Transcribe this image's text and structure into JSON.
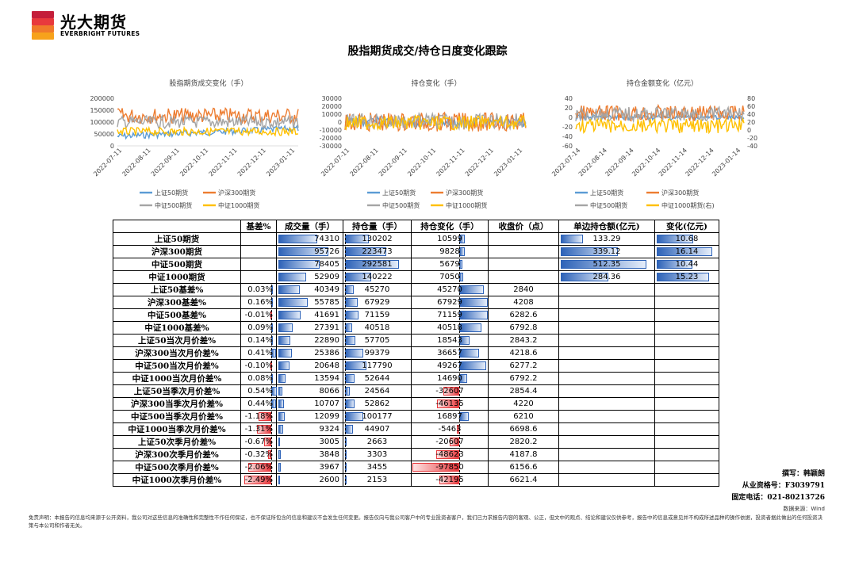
{
  "logo": {
    "cn": "光大期货",
    "en": "EVERBRIGHT FUTURES",
    "colors": [
      "#e8393d",
      "#f07a2a",
      "#f7a21b",
      "#c41e3a"
    ]
  },
  "title": "股指期货成交/持仓日度变化跟踪",
  "charts": [
    {
      "title": "股指期货成交变化（手）",
      "type": "line",
      "yticks": [
        "200000",
        "150000",
        "100000",
        "50000",
        "0"
      ],
      "xticks": [
        "2022-07-11",
        "2022-08-11",
        "2022-09-11",
        "2022-10-11",
        "2022-11-11",
        "2022-12-11",
        "2023-01-11"
      ],
      "legend": [
        "上证50期货",
        "沪深300期货",
        "中证500期货",
        "中证1000期货"
      ]
    },
    {
      "title": "持仓变化（手）",
      "type": "line",
      "yticks": [
        "30000",
        "20000",
        "10000",
        "0",
        "-10000",
        "-20000",
        "-30000"
      ],
      "xticks": [
        "2022-07-11",
        "2022-08-11",
        "2022-09-11",
        "2022-10-11",
        "2022-11-11",
        "2022-12-11",
        "2023-01-11"
      ],
      "legend": [
        "上证50期货",
        "沪深300期货",
        "中证500期货",
        "中证1000期货"
      ]
    },
    {
      "title": "持仓金额变化（亿元）",
      "type": "line",
      "yticks": [
        "40",
        "20",
        "0",
        "-20",
        "-40",
        "-60"
      ],
      "yticks_right": [
        "80",
        "60",
        "40",
        "20",
        "0",
        "-20",
        "-40"
      ],
      "xticks": [
        "2022-07-14",
        "2022-08-14",
        "2022-09-14",
        "2022-10-14",
        "2022-11-14",
        "2022-12-14",
        "2023-01-14"
      ],
      "legend": [
        "上证50期货",
        "沪深300期货",
        "中证500期货",
        "中证1000期货(右)"
      ]
    }
  ],
  "series_colors": [
    "#5b9bd5",
    "#ed7d31",
    "#a5a5a5",
    "#ffc000"
  ],
  "table": {
    "headers": [
      "基差%",
      "成交量（手）",
      "持仓量（手）",
      "持仓变化（手）",
      "收盘价（点）",
      "单边持仓额(亿元)",
      "变化(亿元)"
    ],
    "rows": [
      {
        "label": "上证50期货",
        "basis": "",
        "vol": "74310",
        "oi": "130202",
        "chg": "10599",
        "close": "",
        "amt": "133.29",
        "amtchg": "10.68"
      },
      {
        "label": "沪深300期货",
        "basis": "",
        "vol": "95726",
        "oi": "223473",
        "chg": "9828",
        "close": "",
        "amt": "339.12",
        "amtchg": "16.14"
      },
      {
        "label": "中证500期货",
        "basis": "",
        "vol": "78405",
        "oi": "292581",
        "chg": "5679",
        "close": "",
        "amt": "512.35",
        "amtchg": "10.44"
      },
      {
        "label": "中证1000期货",
        "basis": "",
        "vol": "52909",
        "oi": "140222",
        "chg": "7050",
        "close": "",
        "amt": "284.36",
        "amtchg": "15.23"
      },
      {
        "label": "上证50基差%",
        "basis": "0.03%",
        "vol": "40349",
        "oi": "45270",
        "chg": "45270",
        "close": "2840",
        "amt": "",
        "amtchg": ""
      },
      {
        "label": "沪深300基差%",
        "basis": "0.16%",
        "vol": "55785",
        "oi": "67929",
        "chg": "67929",
        "close": "4208",
        "amt": "",
        "amtchg": ""
      },
      {
        "label": "中证500基差%",
        "basis": "-0.01%",
        "vol": "41691",
        "oi": "71159",
        "chg": "71159",
        "close": "6282.6",
        "amt": "",
        "amtchg": ""
      },
      {
        "label": "中证1000基差%",
        "basis": "0.09%",
        "vol": "27391",
        "oi": "40518",
        "chg": "40518",
        "close": "6792.8",
        "amt": "",
        "amtchg": ""
      },
      {
        "label": "上证50当次月价差%",
        "basis": "0.14%",
        "vol": "22890",
        "oi": "57705",
        "chg": "18543",
        "close": "2843.2",
        "amt": "",
        "amtchg": ""
      },
      {
        "label": "沪深300当次月价差%",
        "basis": "0.41%",
        "vol": "25386",
        "oi": "99379",
        "chg": "36657",
        "close": "4218.6",
        "amt": "",
        "amtchg": ""
      },
      {
        "label": "中证500当次月价差%",
        "basis": "-0.10%",
        "vol": "20648",
        "oi": "117790",
        "chg": "49267",
        "close": "6277.2",
        "amt": "",
        "amtchg": ""
      },
      {
        "label": "中证1000当次月价差%",
        "basis": "0.08%",
        "vol": "13594",
        "oi": "52644",
        "chg": "14690",
        "close": "6792.2",
        "amt": "",
        "amtchg": ""
      },
      {
        "label": "上证50当季次月价差%",
        "basis": "0.54%",
        "vol": "8066",
        "oi": "24564",
        "chg": "-32607",
        "close": "2854.4",
        "amt": "",
        "amtchg": ""
      },
      {
        "label": "沪深300当季次月价差%",
        "basis": "0.44%",
        "vol": "10707",
        "oi": "52862",
        "chg": "-46135",
        "close": "4220",
        "amt": "",
        "amtchg": ""
      },
      {
        "label": "中证500当季次月价差%",
        "basis": "-1.18%",
        "vol": "12099",
        "oi": "100177",
        "chg": "16897",
        "close": "6210",
        "amt": "",
        "amtchg": ""
      },
      {
        "label": "中证1000当季次月价差%",
        "basis": "-1.31%",
        "vol": "9324",
        "oi": "44907",
        "chg": "-5463",
        "close": "6698.6",
        "amt": "",
        "amtchg": ""
      },
      {
        "label": "上证50次季月价差%",
        "basis": "-0.67%",
        "vol": "3005",
        "oi": "2663",
        "chg": "-20607",
        "close": "2820.2",
        "amt": "",
        "amtchg": ""
      },
      {
        "label": "沪深300次季月价差%",
        "basis": "-0.32%",
        "vol": "3848",
        "oi": "3303",
        "chg": "-48623",
        "close": "4187.8",
        "amt": "",
        "amtchg": ""
      },
      {
        "label": "中证500次季月价差%",
        "basis": "-2.06%",
        "vol": "3967",
        "oi": "3455",
        "chg": "-97850",
        "close": "6156.6",
        "amt": "",
        "amtchg": ""
      },
      {
        "label": "中证1000次季月价差%",
        "basis": "-2.49%",
        "vol": "2600",
        "oi": "2153",
        "chg": "-42195",
        "close": "6621.4",
        "amt": "",
        "amtchg": ""
      }
    ]
  },
  "credits": {
    "author": "撰写：韩颖朗",
    "license": "从业资格号：F3039791",
    "phone": "固定电话：021-80213726"
  },
  "source": "数据来源：Wind",
  "disclaimer": "免责声明：本报告的信息均来源于公开资料，我公司对这些信息的准确性和完整性不作任何保证，也不保证所包含的信息和建议不会发生任何变更。报告仅向与我公司客户中的专业投资者客户，我们已力求报告内容的客观、公正，但文中的观点、结论和建议仅供参考，报告中的信息或意见并不构成所述品种的操作依据，投资者据此做出的任何投资决策与本公司和作者无关。"
}
